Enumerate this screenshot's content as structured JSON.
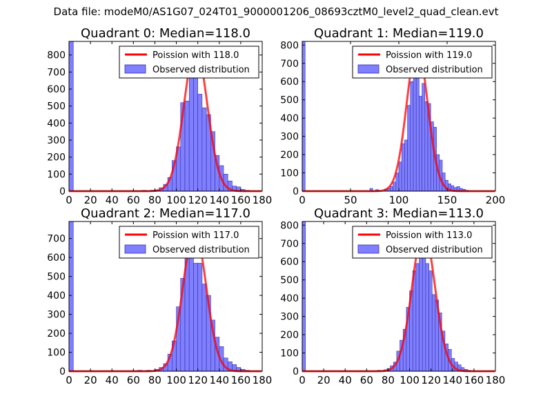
{
  "figure_title": "Data file: modeM0/AS1G07_024T01_9000001206_08693cztM0_level2_quad_clean.evt",
  "colors": {
    "bar_fill": "#7f7fff",
    "bar_edge": "#3333aa",
    "curve": "#ff0000",
    "axes": "#000000"
  },
  "chart_data": [
    {
      "type": "bar",
      "title": "Quadrant 0: Median=118.0",
      "xlim": [
        0,
        180
      ],
      "ylim": [
        0,
        880
      ],
      "xticks": [
        0,
        20,
        40,
        60,
        80,
        100,
        120,
        140,
        160,
        180
      ],
      "yticks": [
        0,
        100,
        200,
        300,
        400,
        500,
        600,
        700,
        800
      ],
      "legend": {
        "position": "top-right",
        "entries": [
          "Poission with 118.0",
          "Observed distribution"
        ]
      },
      "bin_width": 4,
      "bins": [
        {
          "x": 0,
          "count": 880
        },
        {
          "x": 68,
          "count": 5
        },
        {
          "x": 76,
          "count": 5
        },
        {
          "x": 80,
          "count": 8
        },
        {
          "x": 84,
          "count": 20
        },
        {
          "x": 88,
          "count": 40
        },
        {
          "x": 92,
          "count": 80
        },
        {
          "x": 96,
          "count": 180
        },
        {
          "x": 100,
          "count": 260
        },
        {
          "x": 104,
          "count": 520
        },
        {
          "x": 108,
          "count": 530
        },
        {
          "x": 112,
          "count": 690
        },
        {
          "x": 116,
          "count": 720
        },
        {
          "x": 120,
          "count": 570
        },
        {
          "x": 124,
          "count": 490
        },
        {
          "x": 128,
          "count": 450
        },
        {
          "x": 132,
          "count": 350
        },
        {
          "x": 136,
          "count": 210
        },
        {
          "x": 140,
          "count": 150
        },
        {
          "x": 144,
          "count": 100
        },
        {
          "x": 148,
          "count": 60
        },
        {
          "x": 152,
          "count": 30
        },
        {
          "x": 156,
          "count": 25
        },
        {
          "x": 160,
          "count": 10
        },
        {
          "x": 164,
          "count": 5
        }
      ],
      "poisson_mean": 118.0,
      "poisson_peak": 840
    },
    {
      "type": "bar",
      "title": "Quadrant 1: Median=119.0",
      "xlim": [
        0,
        200
      ],
      "ylim": [
        0,
        820
      ],
      "xticks": [
        0,
        50,
        100,
        150,
        200
      ],
      "yticks": [
        0,
        100,
        200,
        300,
        400,
        500,
        600,
        700,
        800
      ],
      "legend": {
        "position": "top-right",
        "entries": [
          "Poission with 119.0",
          "Observed distribution"
        ]
      },
      "bin_width": 3,
      "bins": [
        {
          "x": 0,
          "count": 820
        },
        {
          "x": 70,
          "count": 15
        },
        {
          "x": 76,
          "count": 8
        },
        {
          "x": 85,
          "count": 10
        },
        {
          "x": 88,
          "count": 15
        },
        {
          "x": 91,
          "count": 25
        },
        {
          "x": 94,
          "count": 50
        },
        {
          "x": 97,
          "count": 100
        },
        {
          "x": 100,
          "count": 160
        },
        {
          "x": 103,
          "count": 260
        },
        {
          "x": 106,
          "count": 280
        },
        {
          "x": 109,
          "count": 470
        },
        {
          "x": 112,
          "count": 600
        },
        {
          "x": 115,
          "count": 680
        },
        {
          "x": 118,
          "count": 790
        },
        {
          "x": 121,
          "count": 520
        },
        {
          "x": 124,
          "count": 590
        },
        {
          "x": 127,
          "count": 490
        },
        {
          "x": 130,
          "count": 480
        },
        {
          "x": 133,
          "count": 380
        },
        {
          "x": 136,
          "count": 350
        },
        {
          "x": 139,
          "count": 200
        },
        {
          "x": 142,
          "count": 170
        },
        {
          "x": 145,
          "count": 100
        },
        {
          "x": 148,
          "count": 60
        },
        {
          "x": 151,
          "count": 40
        },
        {
          "x": 154,
          "count": 30
        },
        {
          "x": 157,
          "count": 20
        },
        {
          "x": 160,
          "count": 25
        },
        {
          "x": 163,
          "count": 15
        },
        {
          "x": 166,
          "count": 10
        },
        {
          "x": 169,
          "count": 5
        }
      ],
      "poisson_mean": 119.0,
      "poisson_peak": 790
    },
    {
      "type": "bar",
      "title": "Quadrant 2: Median=117.0",
      "xlim": [
        0,
        180
      ],
      "ylim": [
        0,
        790
      ],
      "xticks": [
        0,
        20,
        40,
        60,
        80,
        100,
        120,
        140,
        160,
        180
      ],
      "yticks": [
        0,
        100,
        200,
        300,
        400,
        500,
        600,
        700
      ],
      "legend": {
        "position": "top-right",
        "entries": [
          "Poission with 117.0",
          "Observed distribution"
        ]
      },
      "bin_width": 4,
      "bins": [
        {
          "x": 0,
          "count": 790
        },
        {
          "x": 64,
          "count": 5
        },
        {
          "x": 72,
          "count": 5
        },
        {
          "x": 80,
          "count": 10
        },
        {
          "x": 84,
          "count": 20
        },
        {
          "x": 88,
          "count": 40
        },
        {
          "x": 92,
          "count": 90
        },
        {
          "x": 96,
          "count": 160
        },
        {
          "x": 100,
          "count": 340
        },
        {
          "x": 104,
          "count": 490
        },
        {
          "x": 108,
          "count": 730
        },
        {
          "x": 112,
          "count": 700
        },
        {
          "x": 116,
          "count": 570
        },
        {
          "x": 120,
          "count": 570
        },
        {
          "x": 124,
          "count": 460
        },
        {
          "x": 128,
          "count": 400
        },
        {
          "x": 132,
          "count": 270
        },
        {
          "x": 136,
          "count": 180
        },
        {
          "x": 140,
          "count": 130
        },
        {
          "x": 144,
          "count": 70
        },
        {
          "x": 148,
          "count": 50
        },
        {
          "x": 152,
          "count": 35
        },
        {
          "x": 156,
          "count": 20
        },
        {
          "x": 160,
          "count": 10
        },
        {
          "x": 164,
          "count": 5
        }
      ],
      "poisson_mean": 117.0,
      "poisson_peak": 740
    },
    {
      "type": "bar",
      "title": "Quadrant 3: Median=113.0",
      "xlim": [
        0,
        180
      ],
      "ylim": [
        0,
        820
      ],
      "xticks": [
        0,
        20,
        40,
        60,
        80,
        100,
        120,
        140,
        160,
        180
      ],
      "yticks": [
        0,
        100,
        200,
        300,
        400,
        500,
        600,
        700,
        800
      ],
      "legend": {
        "position": "top-right",
        "entries": [
          "Poission with 113.0",
          "Observed distribution"
        ]
      },
      "bin_width": 3,
      "bins": [
        {
          "x": 0,
          "count": 820
        },
        {
          "x": 70,
          "count": 5
        },
        {
          "x": 76,
          "count": 8
        },
        {
          "x": 79,
          "count": 15
        },
        {
          "x": 82,
          "count": 30
        },
        {
          "x": 85,
          "count": 50
        },
        {
          "x": 88,
          "count": 110
        },
        {
          "x": 91,
          "count": 170
        },
        {
          "x": 94,
          "count": 230
        },
        {
          "x": 97,
          "count": 350
        },
        {
          "x": 100,
          "count": 440
        },
        {
          "x": 103,
          "count": 550
        },
        {
          "x": 106,
          "count": 590
        },
        {
          "x": 109,
          "count": 680
        },
        {
          "x": 112,
          "count": 710
        },
        {
          "x": 115,
          "count": 590
        },
        {
          "x": 118,
          "count": 550
        },
        {
          "x": 121,
          "count": 420
        },
        {
          "x": 124,
          "count": 390
        },
        {
          "x": 127,
          "count": 320
        },
        {
          "x": 130,
          "count": 220
        },
        {
          "x": 133,
          "count": 150
        },
        {
          "x": 136,
          "count": 120
        },
        {
          "x": 139,
          "count": 70
        },
        {
          "x": 142,
          "count": 50
        },
        {
          "x": 145,
          "count": 35
        },
        {
          "x": 148,
          "count": 20
        },
        {
          "x": 151,
          "count": 10
        },
        {
          "x": 154,
          "count": 5
        }
      ],
      "poisson_mean": 113.0,
      "poisson_peak": 770
    }
  ]
}
